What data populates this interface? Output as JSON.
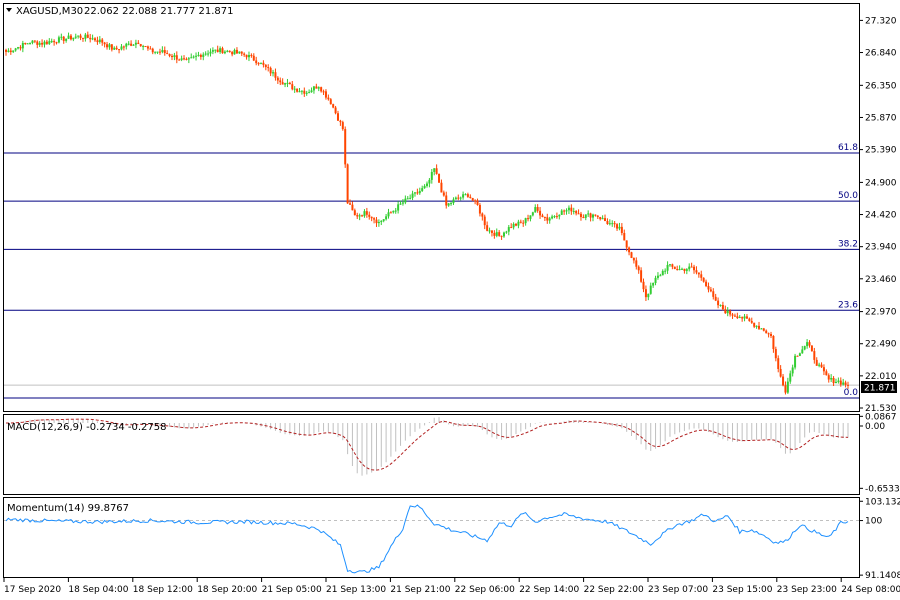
{
  "header": {
    "symbol": "XAGUSD,M30",
    "ohlc": "22.062 22.088 21.777 21.871",
    "macd_label": "MACD(12,26,9) -0.2734 -0.2758",
    "momentum_label": "Momentum(14) 99.8767",
    "triangle_icon": "dropdown-triangle-icon"
  },
  "colors": {
    "bull": "#32CD32",
    "bear": "#FF4500",
    "hist": "#C0C0C0",
    "signal": "#B22222",
    "momentum": "#1E90FF",
    "fibo_line": "#000080",
    "price_box_bg": "#000000",
    "price_box_text": "#FFFFFF"
  },
  "chart_data": [
    {
      "type": "candlestick",
      "title": "XAGUSD,M30",
      "ylim": [
        21.5,
        27.55
      ],
      "y_ticks": [
        "27.320",
        "26.840",
        "26.350",
        "25.870",
        "25.390",
        "24.900",
        "24.420",
        "23.940",
        "23.460",
        "22.970",
        "22.490",
        "22.010",
        "21.530"
      ],
      "x_ticks": [
        "17 Sep 2020",
        "18 Sep 04:00",
        "18 Sep 12:00",
        "18 Sep 20:00",
        "21 Sep 05:00",
        "21 Sep 13:00",
        "21 Sep 21:00",
        "22 Sep 06:00",
        "22 Sep 14:00",
        "22 Sep 22:00",
        "23 Sep 07:00",
        "23 Sep 15:00",
        "23 Sep 23:00",
        "24 Sep 08:00"
      ],
      "current_price": "21.871",
      "fibo_levels": [
        {
          "label": "61.8",
          "price": 25.34
        },
        {
          "label": "50.0",
          "price": 24.62
        },
        {
          "label": "38.2",
          "price": 23.9
        },
        {
          "label": "23.6",
          "price": 22.99
        },
        {
          "label": "0.0",
          "price": 21.68
        }
      ],
      "price_path": [
        [
          0,
          26.85
        ],
        [
          5,
          26.92
        ],
        [
          10,
          27.0
        ],
        [
          15,
          26.98
        ],
        [
          20,
          27.02
        ],
        [
          25,
          27.05
        ],
        [
          30,
          27.08
        ],
        [
          35,
          27.06
        ],
        [
          40,
          27.0
        ],
        [
          45,
          26.88
        ],
        [
          50,
          26.95
        ],
        [
          55,
          27.0
        ],
        [
          60,
          26.86
        ],
        [
          65,
          26.85
        ],
        [
          70,
          26.78
        ],
        [
          75,
          26.7
        ],
        [
          80,
          26.8
        ],
        [
          85,
          26.86
        ],
        [
          90,
          26.87
        ],
        [
          95,
          26.84
        ],
        [
          100,
          26.8
        ],
        [
          105,
          26.7
        ],
        [
          110,
          26.55
        ],
        [
          115,
          26.4
        ],
        [
          120,
          26.3
        ],
        [
          125,
          26.25
        ],
        [
          130,
          26.35
        ],
        [
          135,
          26.1
        ],
        [
          140,
          25.7
        ],
        [
          142,
          24.6
        ],
        [
          145,
          24.4
        ],
        [
          150,
          24.45
        ],
        [
          155,
          24.3
        ],
        [
          160,
          24.45
        ],
        [
          165,
          24.6
        ],
        [
          170,
          24.72
        ],
        [
          175,
          24.85
        ],
        [
          178,
          25.1
        ],
        [
          180,
          24.9
        ],
        [
          183,
          24.55
        ],
        [
          187,
          24.65
        ],
        [
          192,
          24.72
        ],
        [
          196,
          24.55
        ],
        [
          200,
          24.2
        ],
        [
          205,
          24.1
        ],
        [
          210,
          24.25
        ],
        [
          215,
          24.3
        ],
        [
          220,
          24.5
        ],
        [
          225,
          24.35
        ],
        [
          230,
          24.45
        ],
        [
          235,
          24.5
        ],
        [
          240,
          24.4
        ],
        [
          245,
          24.42
        ],
        [
          250,
          24.3
        ],
        [
          255,
          24.2
        ],
        [
          260,
          23.8
        ],
        [
          263,
          23.55
        ],
        [
          266,
          23.2
        ],
        [
          270,
          23.45
        ],
        [
          275,
          23.65
        ],
        [
          280,
          23.6
        ],
        [
          285,
          23.62
        ],
        [
          290,
          23.45
        ],
        [
          295,
          23.1
        ],
        [
          300,
          22.95
        ],
        [
          305,
          22.9
        ],
        [
          310,
          22.8
        ],
        [
          315,
          22.7
        ],
        [
          318,
          22.6
        ],
        [
          321,
          22.1
        ],
        [
          324,
          21.8
        ],
        [
          328,
          22.3
        ],
        [
          333,
          22.5
        ],
        [
          337,
          22.2
        ],
        [
          342,
          21.95
        ],
        [
          346,
          21.93
        ],
        [
          350,
          21.871
        ]
      ]
    },
    {
      "type": "bar",
      "title": "MACD(12,26,9) -0.2734 -0.2758",
      "ylim": [
        -0.7,
        0.07
      ],
      "y_ticks": [
        "0.0867",
        "0.00",
        "-0.6533"
      ]
    },
    {
      "type": "line",
      "title": "Momentum(14) 99.8767",
      "ylim": [
        91.0,
        103.5
      ],
      "y_ticks": [
        "103.1328",
        "100",
        "91.1408"
      ],
      "reference_level": 100,
      "waypoints": [
        [
          0,
          100.2
        ],
        [
          20,
          99.9
        ],
        [
          40,
          99.8
        ],
        [
          60,
          100.0
        ],
        [
          80,
          99.7
        ],
        [
          100,
          99.8
        ],
        [
          120,
          99.5
        ],
        [
          130,
          98.6
        ],
        [
          139,
          96.0
        ],
        [
          142,
          92.0
        ],
        [
          148,
          91.6
        ],
        [
          155,
          92.4
        ],
        [
          160,
          95.8
        ],
        [
          165,
          98.8
        ],
        [
          168,
          102.5
        ],
        [
          172,
          102.2
        ],
        [
          178,
          99.5
        ],
        [
          185,
          98.5
        ],
        [
          190,
          98.0
        ],
        [
          200,
          96.8
        ],
        [
          205,
          99.6
        ],
        [
          210,
          99.2
        ],
        [
          215,
          101.3
        ],
        [
          220,
          99.8
        ],
        [
          225,
          100.5
        ],
        [
          232,
          101.0
        ],
        [
          240,
          100.3
        ],
        [
          250,
          99.8
        ],
        [
          258,
          98.3
        ],
        [
          262,
          97.5
        ],
        [
          268,
          96.2
        ],
        [
          272,
          97.5
        ],
        [
          278,
          99.2
        ],
        [
          285,
          100.0
        ],
        [
          290,
          101.0
        ],
        [
          295,
          99.8
        ],
        [
          300,
          100.8
        ],
        [
          305,
          98.2
        ],
        [
          310,
          98.5
        ],
        [
          315,
          97.6
        ],
        [
          320,
          96.4
        ],
        [
          324,
          96.6
        ],
        [
          330,
          99.3
        ],
        [
          337,
          98.0
        ],
        [
          342,
          97.2
        ],
        [
          347,
          99.6
        ],
        [
          350,
          99.88
        ]
      ]
    }
  ]
}
